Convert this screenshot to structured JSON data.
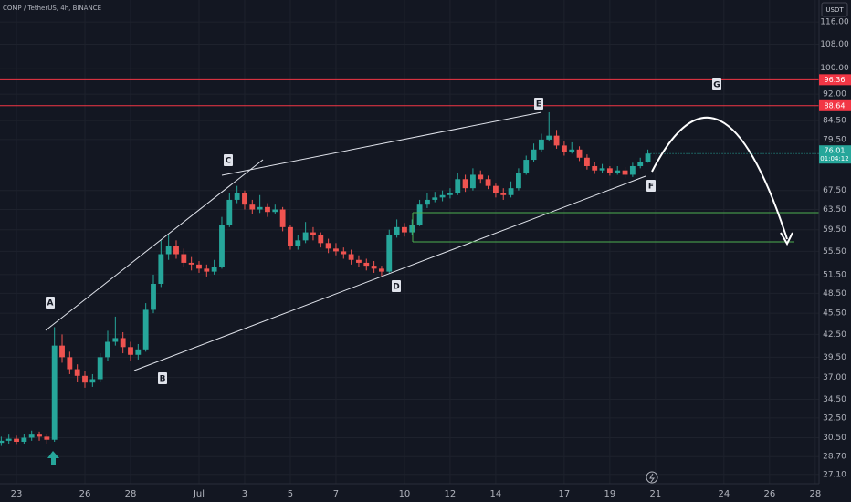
{
  "chart_data": {
    "type": "candlestick",
    "title": "COMP / TetherUS, 4h, BINANCE",
    "currency": "USDT",
    "log_scale": true,
    "grid": true,
    "up_color": "#26a69a",
    "down_color": "#ef5350",
    "level_color": "#f23645",
    "categories": [
      null,
      null,
      "23",
      null,
      null,
      null,
      null,
      null,
      null,
      null,
      null,
      "26",
      null,
      null,
      null,
      null,
      null,
      "28",
      null,
      null,
      null,
      null,
      null,
      null,
      null,
      null,
      "Jul",
      null,
      null,
      null,
      null,
      null,
      "3",
      null,
      null,
      null,
      null,
      null,
      "5",
      null,
      null,
      null,
      null,
      null,
      "7",
      null,
      null,
      null,
      null,
      null,
      null,
      null,
      null,
      "10",
      null,
      null,
      null,
      null,
      null,
      "12",
      null,
      null,
      null,
      null,
      null,
      "14",
      null,
      null,
      null,
      null,
      null,
      null,
      null,
      null,
      "17",
      null,
      null,
      null,
      null,
      null,
      "19",
      null,
      null,
      null,
      null,
      null,
      "21",
      null,
      null,
      null,
      null,
      null,
      null,
      null,
      null,
      "24",
      null,
      null,
      null,
      null,
      null,
      "26",
      null,
      null,
      null,
      null,
      null,
      "28"
    ],
    "open": [
      30.0,
      30.2,
      30.4,
      30.1,
      30.5,
      30.8,
      30.6,
      30.3,
      41.0,
      39.5,
      38.0,
      37.2,
      36.4,
      36.8,
      39.5,
      41.5,
      42.0,
      40.8,
      39.8,
      40.5,
      46.0,
      50.0,
      55.0,
      56.5,
      55.0,
      53.5,
      53.2,
      52.5,
      52.0,
      52.8,
      60.5,
      65.5,
      67.0,
      64.5,
      63.5,
      64.0,
      63.0,
      63.5,
      60.0,
      56.5,
      57.5,
      59.0,
      58.5,
      57.0,
      56.0,
      55.5,
      55.0,
      54.0,
      53.5,
      53.0,
      52.5,
      52.0,
      58.5,
      60.0,
      59.0,
      60.5,
      64.5,
      65.5,
      66.0,
      66.5,
      67.0,
      70.0,
      68.0,
      71.0,
      70.0,
      68.5,
      67.0,
      66.5,
      68.0,
      71.5,
      74.5,
      77.0,
      79.5,
      80.5,
      78.0,
      76.5,
      77.0,
      75.0,
      73.0,
      72.0,
      72.5,
      71.5,
      72.0,
      71.0,
      73.0,
      74.0,
      null,
      null,
      null,
      null,
      null,
      null,
      null,
      null,
      null,
      null,
      null,
      null,
      null,
      null,
      null,
      null,
      null,
      null,
      null,
      null,
      null,
      null
    ],
    "high": [
      30.6,
      30.8,
      30.7,
      30.9,
      31.2,
      31.1,
      30.9,
      43.5,
      42.5,
      40.2,
      38.6,
      37.8,
      37.4,
      40.0,
      43.0,
      45.0,
      42.8,
      41.5,
      41.2,
      47.0,
      51.5,
      57.5,
      58.5,
      57.5,
      56.0,
      54.5,
      53.8,
      53.2,
      54.0,
      62.0,
      67.0,
      68.5,
      67.5,
      65.5,
      66.5,
      64.8,
      64.5,
      64.0,
      60.5,
      58.5,
      61.0,
      60.0,
      59.0,
      57.8,
      57.0,
      56.2,
      55.8,
      54.8,
      54.2,
      53.8,
      53.0,
      59.5,
      61.5,
      60.8,
      61.5,
      65.5,
      67.0,
      67.2,
      67.5,
      68.0,
      71.5,
      71.0,
      72.5,
      72.0,
      70.8,
      69.0,
      68.0,
      69.5,
      72.5,
      75.5,
      78.5,
      81.0,
      86.8,
      82.0,
      79.0,
      78.8,
      77.8,
      75.8,
      74.0,
      73.5,
      73.0,
      73.0,
      72.8,
      73.8,
      75.0,
      77.0,
      null,
      null,
      null,
      null,
      null,
      null,
      null,
      null,
      null,
      null,
      null,
      null,
      null,
      null,
      null,
      null,
      null,
      null,
      null,
      null,
      null,
      null
    ],
    "low": [
      29.7,
      29.9,
      29.8,
      29.9,
      30.2,
      30.2,
      29.9,
      30.1,
      38.8,
      37.4,
      36.5,
      35.8,
      35.9,
      36.5,
      39.0,
      41.0,
      40.0,
      39.0,
      39.2,
      40.2,
      45.5,
      49.5,
      54.0,
      54.2,
      52.8,
      52.2,
      51.8,
      51.2,
      51.5,
      52.5,
      60.0,
      64.8,
      63.5,
      62.5,
      62.8,
      62.0,
      62.5,
      59.2,
      55.8,
      55.8,
      57.0,
      57.5,
      56.2,
      55.2,
      54.8,
      54.2,
      53.2,
      52.8,
      52.2,
      51.8,
      51.3,
      51.8,
      58.0,
      58.2,
      58.5,
      60.2,
      63.8,
      65.0,
      65.2,
      65.8,
      66.5,
      67.2,
      67.5,
      69.0,
      67.8,
      66.0,
      65.5,
      66.0,
      67.5,
      71.0,
      74.0,
      76.5,
      79.0,
      77.2,
      75.5,
      76.0,
      74.2,
      72.2,
      71.2,
      71.5,
      70.8,
      71.0,
      70.2,
      70.5,
      72.5,
      73.8,
      null,
      null,
      null,
      null,
      null,
      null,
      null,
      null,
      null,
      null,
      null,
      null,
      null,
      null,
      null,
      null,
      null,
      null,
      null,
      null,
      null,
      null
    ],
    "close": [
      30.2,
      30.4,
      30.1,
      30.5,
      30.8,
      30.6,
      30.3,
      41.0,
      39.5,
      38.0,
      37.2,
      36.4,
      36.8,
      39.5,
      41.5,
      42.0,
      40.8,
      39.8,
      40.5,
      46.0,
      50.0,
      55.0,
      56.5,
      55.0,
      53.5,
      53.2,
      52.5,
      52.0,
      52.8,
      60.5,
      65.5,
      67.0,
      64.5,
      63.5,
      64.0,
      63.0,
      63.5,
      60.0,
      56.5,
      57.5,
      59.0,
      58.5,
      57.0,
      56.0,
      55.5,
      55.0,
      54.0,
      53.5,
      53.0,
      52.5,
      52.0,
      58.5,
      60.0,
      59.0,
      60.5,
      64.5,
      65.5,
      66.0,
      66.5,
      67.0,
      70.0,
      68.0,
      71.0,
      70.0,
      68.5,
      67.0,
      66.5,
      68.0,
      71.5,
      74.5,
      77.0,
      79.5,
      80.5,
      78.0,
      76.5,
      77.0,
      75.0,
      73.0,
      72.0,
      72.5,
      71.5,
      72.0,
      71.0,
      73.0,
      74.0,
      76.01,
      null,
      null,
      null,
      null,
      null,
      null,
      null,
      null,
      null,
      null,
      null,
      null,
      null,
      null,
      null,
      null,
      null,
      null,
      null,
      null,
      null,
      null
    ],
    "ylim": [
      26.3,
      124.5
    ],
    "yticks": [
      {
        "value": 116,
        "label": "116.00"
      },
      {
        "value": 108,
        "label": "108.00"
      },
      {
        "value": 100,
        "label": "100.00"
      },
      {
        "value": 92,
        "label": "92.00"
      },
      {
        "value": 84.5,
        "label": "84.50"
      },
      {
        "value": 79.5,
        "label": "79.50"
      },
      {
        "value": 67.5,
        "label": "67.50"
      },
      {
        "value": 63.5,
        "label": "63.50"
      },
      {
        "value": 59.5,
        "label": "59.50"
      },
      {
        "value": 55.5,
        "label": "55.50"
      },
      {
        "value": 51.5,
        "label": "51.50"
      },
      {
        "value": 48.5,
        "label": "48.50"
      },
      {
        "value": 45.5,
        "label": "45.50"
      },
      {
        "value": 42.5,
        "label": "42.50"
      },
      {
        "value": 39.5,
        "label": "39.50"
      },
      {
        "value": 37,
        "label": "37.00"
      },
      {
        "value": 34.5,
        "label": "34.50"
      },
      {
        "value": 32.5,
        "label": "32.50"
      },
      {
        "value": 30.5,
        "label": "30.50"
      },
      {
        "value": 28.7,
        "label": "28.70"
      },
      {
        "value": 27.1,
        "label": "27.10"
      }
    ],
    "levels": [
      96.36,
      88.64
    ],
    "countdown": "01:04:12",
    "annotations": [
      "A",
      "B",
      "C",
      "D",
      "E",
      "F",
      "G"
    ]
  }
}
